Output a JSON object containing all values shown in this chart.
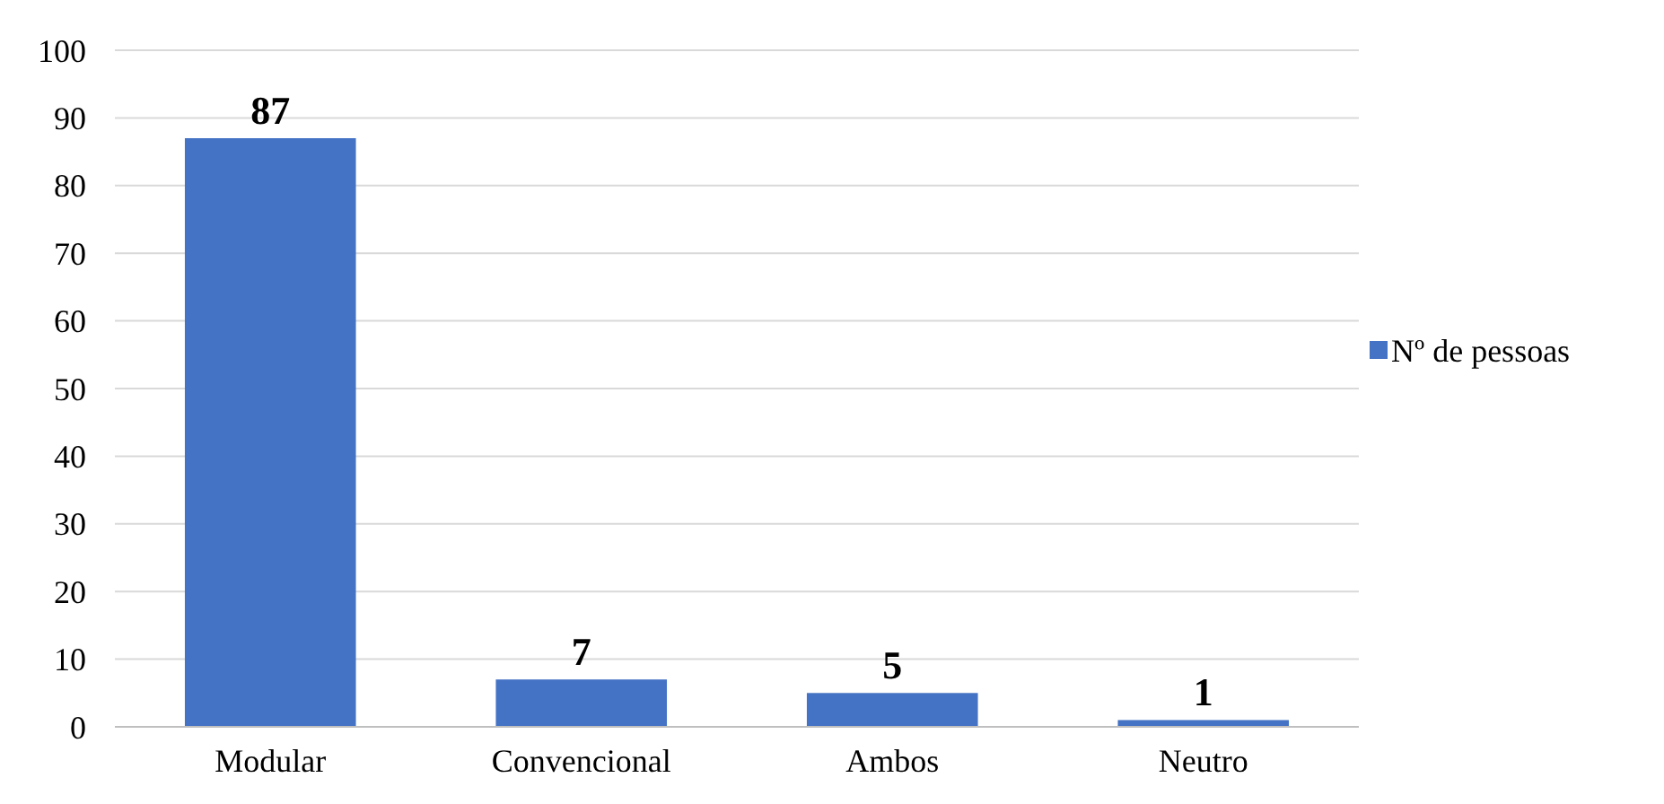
{
  "chart_data": {
    "type": "bar",
    "categories": [
      "Modular",
      "Convencional",
      "Ambos",
      "Neutro"
    ],
    "series": [
      {
        "name": "Nº de pessoas",
        "color": "#4472c4",
        "values": [
          87,
          7,
          5,
          1
        ]
      }
    ],
    "ylim": [
      0,
      100
    ],
    "yticks": [
      0,
      10,
      20,
      30,
      40,
      50,
      60,
      70,
      80,
      90,
      100
    ],
    "grid": "y",
    "legend": "right",
    "data_labels": true
  }
}
